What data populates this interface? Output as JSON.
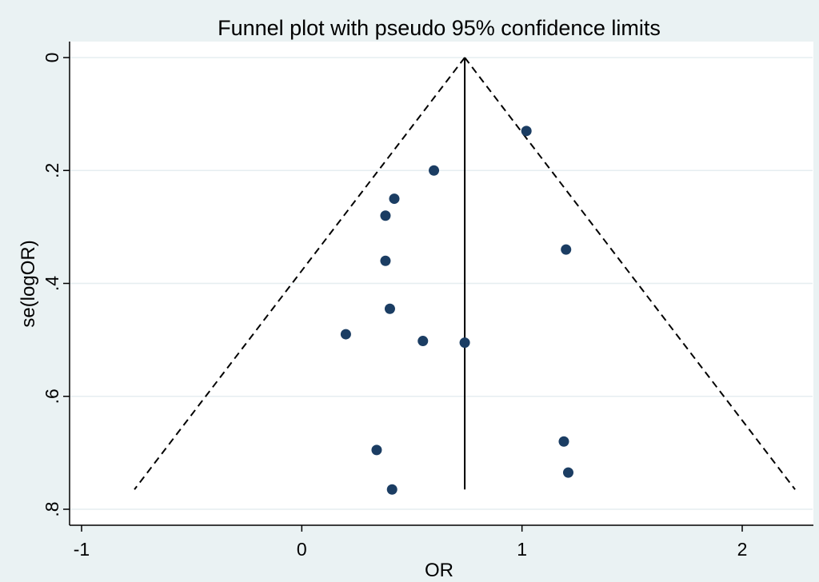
{
  "chart_data": {
    "type": "scatter",
    "title": "Funnel plot with pseudo 95% confidence limits",
    "xlabel": "OR",
    "ylabel": "se(logOR)",
    "xlim": [
      -1,
      2.25
    ],
    "ylim": [
      0,
      0.8
    ],
    "y_reversed": true,
    "x_ticks": [
      -1,
      0,
      1,
      2
    ],
    "x_tick_labels": [
      "-1",
      "0",
      "1",
      "2"
    ],
    "y_ticks": [
      0,
      0.2,
      0.4,
      0.6,
      0.8
    ],
    "y_tick_labels": [
      "0",
      ".2",
      ".4",
      ".6",
      ".8"
    ],
    "grid": true,
    "pooled_estimate": 0.74,
    "funnel_limits": {
      "lower": [
        [
          0.74,
          0
        ],
        [
          -0.76,
          0.765
        ]
      ],
      "upper": [
        [
          0.74,
          0
        ],
        [
          2.24,
          0.765
        ]
      ]
    },
    "points": [
      {
        "x": 1.02,
        "y": 0.13
      },
      {
        "x": 0.6,
        "y": 0.2
      },
      {
        "x": 0.42,
        "y": 0.25
      },
      {
        "x": 0.38,
        "y": 0.28
      },
      {
        "x": 1.2,
        "y": 0.34
      },
      {
        "x": 0.38,
        "y": 0.36
      },
      {
        "x": 0.4,
        "y": 0.445
      },
      {
        "x": 0.2,
        "y": 0.49
      },
      {
        "x": 0.55,
        "y": 0.502
      },
      {
        "x": 0.74,
        "y": 0.505
      },
      {
        "x": 1.19,
        "y": 0.68
      },
      {
        "x": 0.34,
        "y": 0.695
      },
      {
        "x": 1.21,
        "y": 0.735
      },
      {
        "x": 0.41,
        "y": 0.765
      }
    ],
    "colors": {
      "background": "#eaf2f3",
      "plot_area": "#ffffff",
      "grid": "#e6eef0",
      "point": "#1b3d63",
      "line": "#000000"
    }
  }
}
